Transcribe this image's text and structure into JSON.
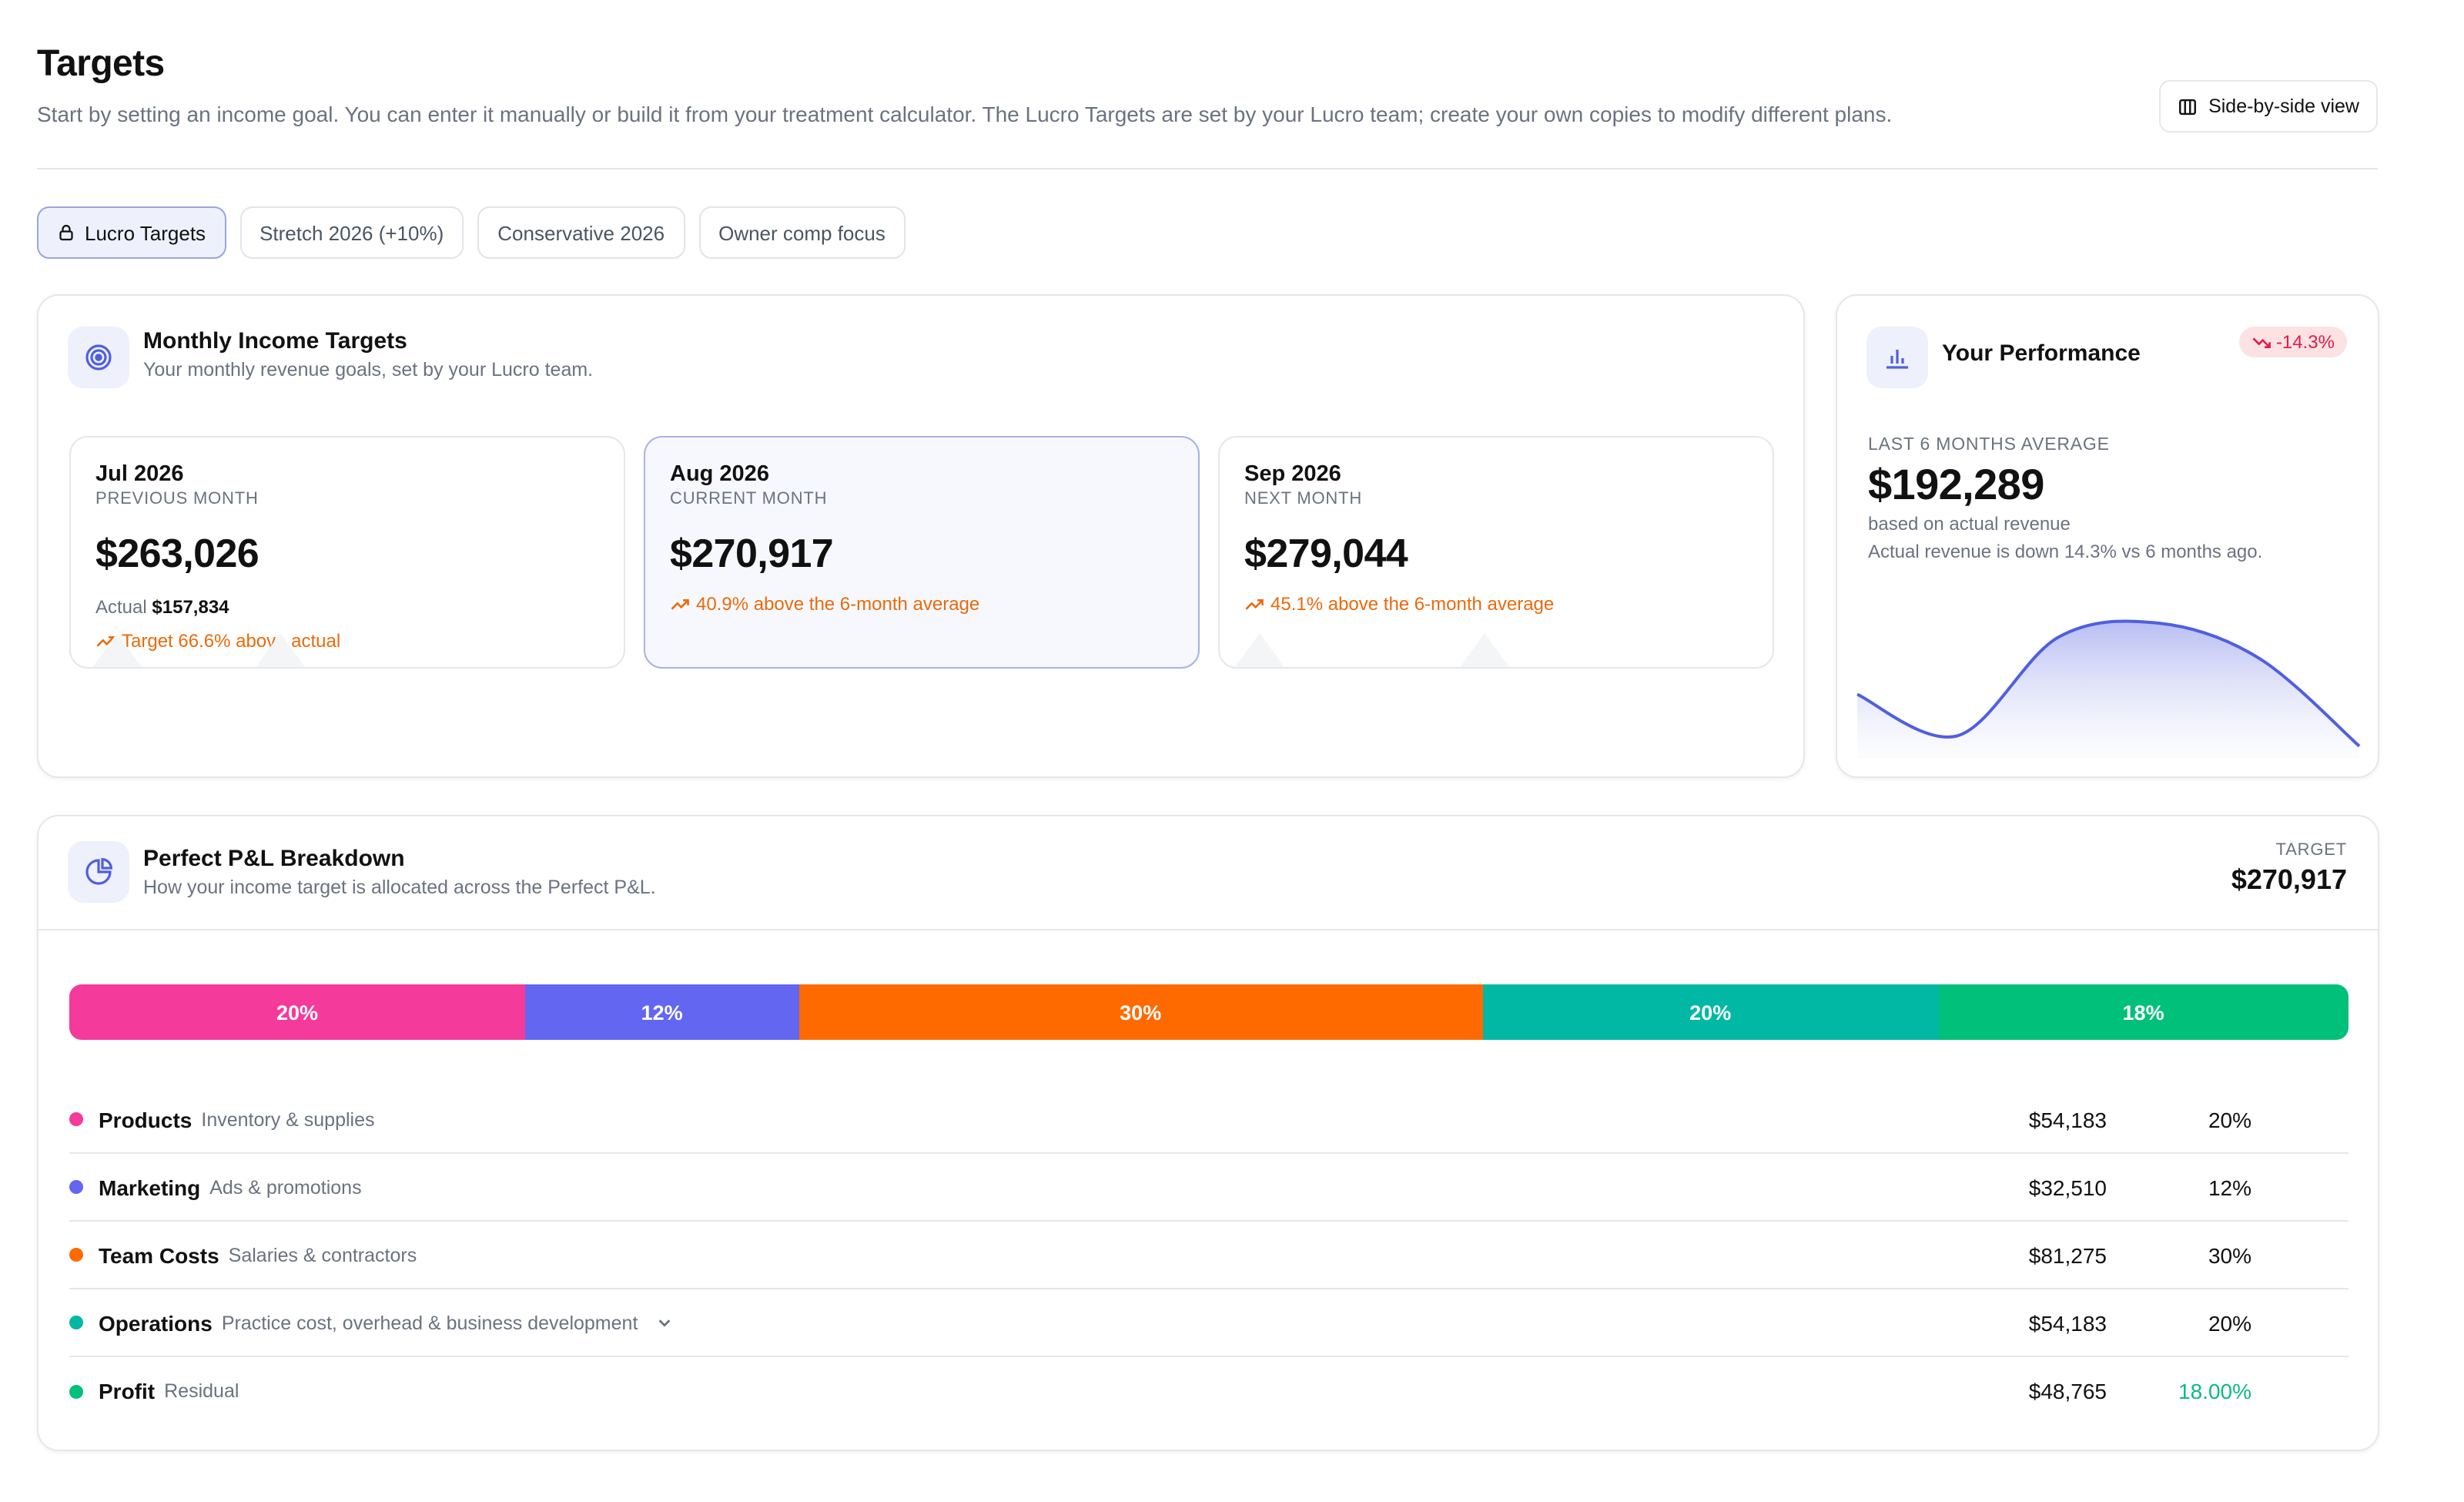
{
  "header": {
    "title": "Targets",
    "description": "Start by setting an income goal. You can enter it manually or build it from your treatment calculator. The Lucro Targets are set by your Lucro team; create your own copies to modify different plans.",
    "side_by_side_label": "Side-by-side view"
  },
  "tabs": [
    {
      "label": "Lucro Targets",
      "active": true,
      "icon": "lock-icon"
    },
    {
      "label": "Stretch 2026 (+10%)",
      "active": false
    },
    {
      "label": "Conservative 2026",
      "active": false
    },
    {
      "label": "Owner comp focus",
      "active": false
    }
  ],
  "monthly": {
    "title": "Monthly Income Targets",
    "subtitle": "Your monthly revenue goals, set by your Lucro team.",
    "icon": "target-icon",
    "months": [
      {
        "name": "Jul 2026",
        "kind": "PREVIOUS MONTH",
        "amount": "$263,026",
        "actual_label": "Actual",
        "actual_value": "$157,834",
        "note": "Target 66.6% above actual"
      },
      {
        "name": "Aug 2026",
        "kind": "CURRENT MONTH",
        "amount": "$270,917",
        "note": "40.9% above the 6-month average"
      },
      {
        "name": "Sep 2026",
        "kind": "NEXT MONTH",
        "amount": "$279,044",
        "note": "45.1% above the 6-month average"
      }
    ]
  },
  "performance": {
    "title": "Your Performance",
    "icon": "bar-chart-icon",
    "badge": "-14.3%",
    "label": "LAST 6 MONTHS AVERAGE",
    "amount": "$192,289",
    "basis": "based on actual revenue",
    "trend_text": "Actual revenue is down 14.3% vs 6 months ago.",
    "accent": "#4f5fe0"
  },
  "chart_data": {
    "type": "area",
    "title": "",
    "xlabel": "",
    "ylabel": "",
    "x": [
      1,
      2,
      3,
      4,
      5,
      6
    ],
    "values": [
      0.42,
      0.1,
      0.86,
      0.97,
      0.7,
      0.02
    ]
  },
  "pl": {
    "title": "Perfect P&L Breakdown",
    "subtitle": "How your income target is allocated across the Perfect P&L.",
    "icon": "pie-chart-icon",
    "target_label": "TARGET",
    "target_amount": "$270,917",
    "segments": [
      {
        "label": "20%",
        "share": 20,
        "color": "#f43a9a"
      },
      {
        "label": "12%",
        "share": 12,
        "color": "#6366f1"
      },
      {
        "label": "30%",
        "share": 30,
        "color": "#ff6a00"
      },
      {
        "label": "20%",
        "share": 20,
        "color": "#00b8a3"
      },
      {
        "label": "18%",
        "share": 18,
        "color": "#00c07a"
      }
    ],
    "rows": [
      {
        "name": "Products",
        "desc": "Inventory & supplies",
        "amount": "$54,183",
        "pct": "20%",
        "color": "#f43a9a"
      },
      {
        "name": "Marketing",
        "desc": "Ads & promotions",
        "amount": "$32,510",
        "pct": "12%",
        "color": "#6366f1"
      },
      {
        "name": "Team Costs",
        "desc": "Salaries & contractors",
        "amount": "$81,275",
        "pct": "30%",
        "color": "#ff6a00"
      },
      {
        "name": "Operations",
        "desc": "Practice cost, overhead & business development",
        "amount": "$54,183",
        "pct": "20%",
        "color": "#00b8a3",
        "expandable": true
      },
      {
        "name": "Profit",
        "desc": "Residual",
        "amount": "$48,765",
        "pct": "18.00%",
        "color": "#00c07a",
        "pct_color": "#10b981"
      }
    ]
  }
}
